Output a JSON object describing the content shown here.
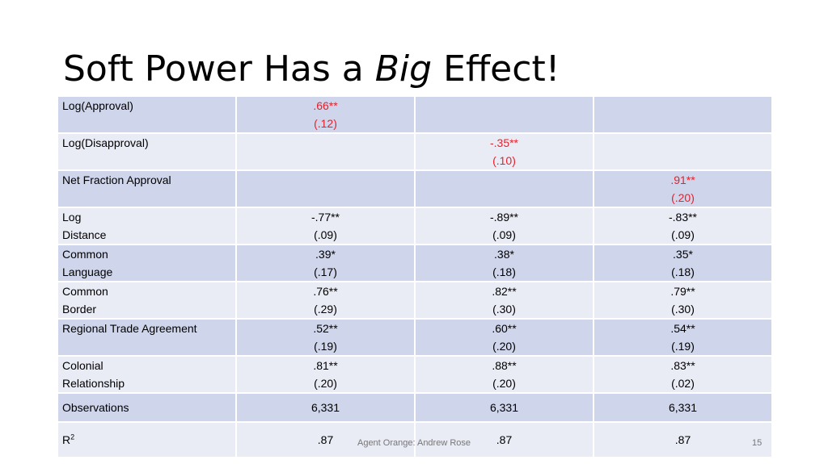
{
  "title": {
    "pre": "Soft Power Has a ",
    "em": "Big",
    "post": " Effect!"
  },
  "rows": [
    {
      "label": [
        "Log(Approval)"
      ],
      "cells": [
        {
          "coef": ".66**",
          "se": "(.12)",
          "red": true
        },
        {
          "coef": "",
          "se": ""
        },
        {
          "coef": "",
          "se": ""
        }
      ]
    },
    {
      "label": [
        "Log(Disapproval)"
      ],
      "cells": [
        {
          "coef": "",
          "se": ""
        },
        {
          "coef": "-.35**",
          "se": "(.10)",
          "red": true
        },
        {
          "coef": "",
          "se": ""
        }
      ]
    },
    {
      "label": [
        "Net Fraction Approval"
      ],
      "cells": [
        {
          "coef": "",
          "se": ""
        },
        {
          "coef": "",
          "se": ""
        },
        {
          "coef": ".91**",
          "se": "(.20)",
          "red": true
        }
      ]
    },
    {
      "label": [
        "Log",
        "Distance"
      ],
      "cells": [
        {
          "coef": "-.77**",
          "se": "(.09)"
        },
        {
          "coef": "-.89**",
          "se": "(.09)"
        },
        {
          "coef": "-.83**",
          "se": "(.09)"
        }
      ]
    },
    {
      "label": [
        "Common",
        "Language"
      ],
      "cells": [
        {
          "coef": ".39*",
          "se": "(.17)"
        },
        {
          "coef": ".38*",
          "se": "(.18)"
        },
        {
          "coef": ".35*",
          "se": "(.18)"
        }
      ]
    },
    {
      "label": [
        "Common",
        "Border"
      ],
      "cells": [
        {
          "coef": ".76**",
          "se": "(.29)"
        },
        {
          "coef": ".82**",
          "se": "(.30)"
        },
        {
          "coef": ".79**",
          "se": "(.30)"
        }
      ]
    },
    {
      "label": [
        "Regional Trade Agreement"
      ],
      "cells": [
        {
          "coef": ".52**",
          "se": "(.19)"
        },
        {
          "coef": ".60**",
          "se": "(.20)"
        },
        {
          "coef": ".54**",
          "se": "(.19)"
        }
      ]
    },
    {
      "label": [
        "Colonial",
        "Relationship"
      ],
      "cells": [
        {
          "coef": ".81**",
          "se": "(.20)"
        },
        {
          "coef": ".88**",
          "se": "(.20)"
        },
        {
          "coef": ".83**",
          "se": "(.02)"
        }
      ]
    }
  ],
  "observations": {
    "label": "Observations",
    "values": [
      "6,331",
      "6,331",
      "6,331"
    ]
  },
  "r2": {
    "label": "R",
    "sup": "2",
    "values": [
      ".87",
      ".87",
      ".87"
    ]
  },
  "footer": "Agent Orange: Andrew Rose",
  "page_number": "15",
  "colors": {
    "dark_row": "#cfd5ea",
    "light_row": "#e9ebf5",
    "highlight": "#e8202a"
  }
}
